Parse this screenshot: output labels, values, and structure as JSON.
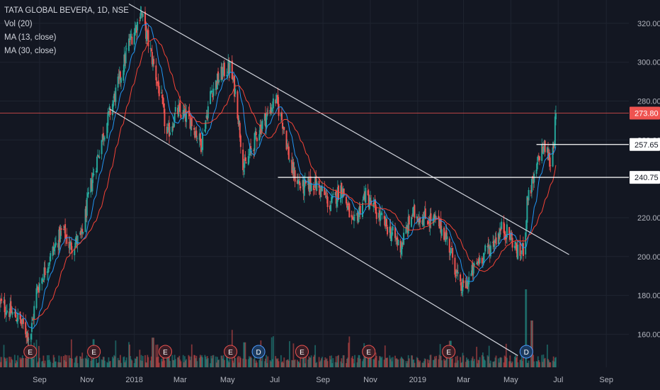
{
  "legend": {
    "symbol": "TATA GLOBAL BEVERA, 1D, NSE",
    "indicators": [
      "Vol (20)",
      "MA (13, close)",
      "MA (30, close)"
    ]
  },
  "colors": {
    "background": "#131722",
    "grid": "#1f2430",
    "up": "#26a69a",
    "down": "#ef5350",
    "ma13": "#2196f3",
    "ma30": "#f44336",
    "trendline": "#d1d4dc",
    "axis_text": "#b2b5be",
    "last_price": "#ef5350"
  },
  "chart_data": {
    "type": "candlestick",
    "symbol": "TATA GLOBAL BEVERA",
    "interval": "1D",
    "exchange": "NSE",
    "y_ticks": [
      160,
      180,
      200,
      220,
      240,
      260,
      280,
      300,
      320
    ],
    "y_tick_labels": [
      "160.00",
      "180.00",
      "200.00",
      "220.00",
      "240.00",
      "260.00",
      "280.00",
      "300.00",
      "320.00"
    ],
    "ylim": [
      143,
      332
    ],
    "x_tick_labels": [
      "Sep",
      "Nov",
      "2018",
      "Mar",
      "May",
      "Jul",
      "Sep",
      "Nov",
      "2019",
      "Mar",
      "May",
      "Jul",
      "Sep"
    ],
    "x_tick_dates": [
      "2017-09-01",
      "2017-11-01",
      "2018-01-01",
      "2018-03-01",
      "2018-05-01",
      "2018-07-01",
      "2018-09-01",
      "2018-11-01",
      "2019-01-01",
      "2019-03-01",
      "2019-05-01",
      "2019-07-01",
      "2019-09-01"
    ],
    "xlim": [
      "2017-07-12",
      "2019-09-30"
    ],
    "last_price": 273.8,
    "last_price_label": "273.80",
    "price_path": [
      [
        "2017-07-12",
        176
      ],
      [
        "2017-08-05",
        168
      ],
      [
        "2017-08-20",
        158
      ],
      [
        "2017-08-28",
        182
      ],
      [
        "2017-09-15",
        200
      ],
      [
        "2017-10-01",
        214
      ],
      [
        "2017-10-10",
        205
      ],
      [
        "2017-10-25",
        210
      ],
      [
        "2017-11-05",
        235
      ],
      [
        "2017-11-20",
        260
      ],
      [
        "2017-12-05",
        280
      ],
      [
        "2017-12-15",
        294
      ],
      [
        "2017-12-25",
        310
      ],
      [
        "2018-01-05",
        320
      ],
      [
        "2018-01-09",
        327
      ],
      [
        "2018-01-25",
        300
      ],
      [
        "2018-02-05",
        280
      ],
      [
        "2018-02-12",
        262
      ],
      [
        "2018-02-25",
        275
      ],
      [
        "2018-03-15",
        270
      ],
      [
        "2018-03-28",
        258
      ],
      [
        "2018-04-10",
        285
      ],
      [
        "2018-04-25",
        295
      ],
      [
        "2018-05-04",
        297
      ],
      [
        "2018-05-12",
        283
      ],
      [
        "2018-05-22",
        245
      ],
      [
        "2018-06-01",
        255
      ],
      [
        "2018-06-10",
        265
      ],
      [
        "2018-06-20",
        272
      ],
      [
        "2018-07-02",
        281
      ],
      [
        "2018-07-12",
        268
      ],
      [
        "2018-07-22",
        245
      ],
      [
        "2018-08-05",
        235
      ],
      [
        "2018-08-20",
        238
      ],
      [
        "2018-09-01",
        233
      ],
      [
        "2018-09-10",
        226
      ],
      [
        "2018-09-25",
        236
      ],
      [
        "2018-10-10",
        215
      ],
      [
        "2018-10-25",
        232
      ],
      [
        "2018-11-10",
        222
      ],
      [
        "2018-11-25",
        214
      ],
      [
        "2018-12-10",
        205
      ],
      [
        "2018-12-25",
        222
      ],
      [
        "2019-01-10",
        220
      ],
      [
        "2019-01-25",
        218
      ],
      [
        "2019-02-05",
        212
      ],
      [
        "2019-02-15",
        200
      ],
      [
        "2019-02-25",
        183
      ],
      [
        "2019-03-05",
        186
      ],
      [
        "2019-03-20",
        198
      ],
      [
        "2019-04-05",
        205
      ],
      [
        "2019-04-20",
        215
      ],
      [
        "2019-05-01",
        210
      ],
      [
        "2019-05-12",
        200
      ],
      [
        "2019-05-18",
        205
      ],
      [
        "2019-05-23",
        232
      ],
      [
        "2019-06-01",
        240
      ],
      [
        "2019-06-08",
        255
      ],
      [
        "2019-06-15",
        256
      ],
      [
        "2019-06-21",
        248
      ],
      [
        "2019-06-26",
        262
      ],
      [
        "2019-06-28",
        273.8
      ]
    ],
    "horizontal_lines": [
      {
        "value": 273.8,
        "label": "273.80",
        "style": "last-price"
      },
      {
        "value": 257.65,
        "label": "257.65",
        "start": "2019-06-03"
      },
      {
        "value": 240.75,
        "label": "240.75",
        "start": "2018-07-05"
      }
    ],
    "trendlines": [
      {
        "from": [
          "2017-12-25",
          330
        ],
        "to": [
          "2019-07-15",
          201
        ]
      },
      {
        "from": [
          "2017-11-30",
          276
        ],
        "to": [
          "2019-05-10",
          149
        ]
      }
    ],
    "events": [
      {
        "date": "2017-08-20",
        "label": "E",
        "kind": "earnings"
      },
      {
        "date": "2017-11-10",
        "label": "E",
        "kind": "earnings"
      },
      {
        "date": "2018-02-10",
        "label": "E",
        "kind": "earnings"
      },
      {
        "date": "2018-05-05",
        "label": "E",
        "kind": "earnings"
      },
      {
        "date": "2018-06-10",
        "label": "D",
        "kind": "dividend"
      },
      {
        "date": "2018-08-05",
        "label": "E",
        "kind": "earnings"
      },
      {
        "date": "2018-10-30",
        "label": "E",
        "kind": "earnings"
      },
      {
        "date": "2019-02-10",
        "label": "E",
        "kind": "earnings"
      },
      {
        "date": "2019-05-21",
        "label": "D",
        "kind": "dividend"
      }
    ],
    "volume_spikes": [
      [
        "2017-08-20",
        2.2
      ],
      [
        "2017-11-10",
        1.8
      ],
      [
        "2018-01-25",
        1.9
      ],
      [
        "2018-05-06",
        2.4
      ],
      [
        "2018-05-23",
        1.6
      ],
      [
        "2019-02-12",
        1.7
      ],
      [
        "2019-05-20",
        5.0
      ],
      [
        "2019-05-28",
        3.0
      ]
    ],
    "ma_periods": [
      13,
      30
    ]
  }
}
